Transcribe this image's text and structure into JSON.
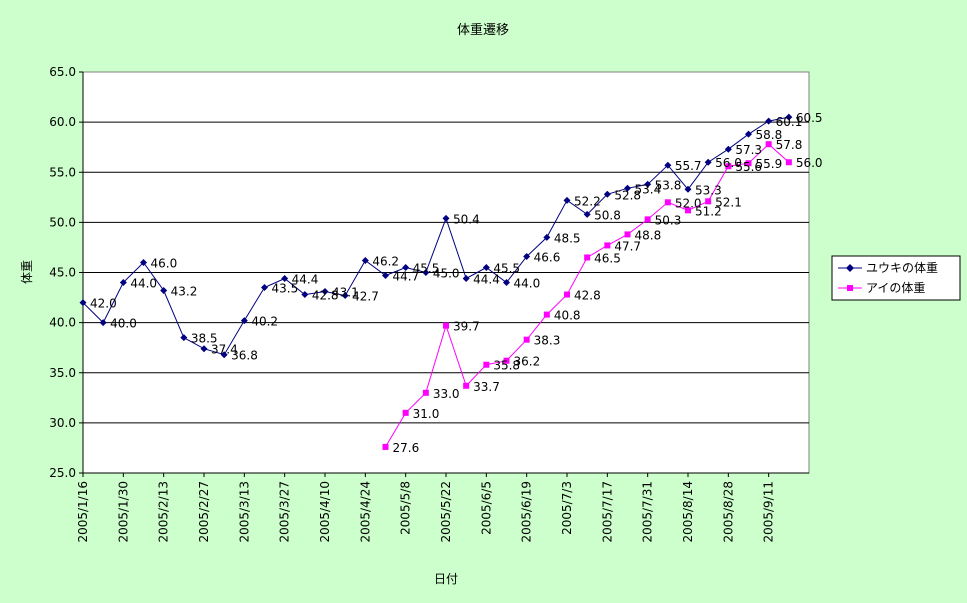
{
  "chart_data": {
    "type": "line",
    "title": "体重遷移",
    "xlabel": "日付",
    "ylabel": "体重",
    "ylim": [
      25.0,
      65.0
    ],
    "yticks": [
      "25.0",
      "30.0",
      "35.0",
      "40.0",
      "45.0",
      "50.0",
      "55.0",
      "60.0",
      "65.0"
    ],
    "xlim": [
      "2005/1/16",
      "2005/9/25"
    ],
    "xticks": [
      "2005/1/16",
      "2005/1/30",
      "2005/2/13",
      "2005/2/27",
      "2005/3/13",
      "2005/3/27",
      "2005/4/10",
      "2005/4/24",
      "2005/5/8",
      "2005/5/22",
      "2005/6/5",
      "2005/6/19",
      "2005/7/3",
      "2005/7/17",
      "2005/7/31",
      "2005/8/14",
      "2005/8/28",
      "2005/9/11"
    ],
    "grid": true,
    "legend_position": "right",
    "series": [
      {
        "name": "ユウキの体重",
        "color": "#000080",
        "marker": "diamond",
        "x": [
          "2005/1/16",
          "2005/1/23",
          "2005/1/30",
          "2005/2/6",
          "2005/2/13",
          "2005/2/20",
          "2005/2/27",
          "2005/3/6",
          "2005/3/13",
          "2005/3/20",
          "2005/3/27",
          "2005/4/3",
          "2005/4/10",
          "2005/4/17",
          "2005/4/24",
          "2005/5/1",
          "2005/5/8",
          "2005/5/15",
          "2005/5/22",
          "2005/5/29",
          "2005/6/5",
          "2005/6/12",
          "2005/6/19",
          "2005/6/26",
          "2005/7/3",
          "2005/7/10",
          "2005/7/17",
          "2005/7/24",
          "2005/7/31",
          "2005/8/7",
          "2005/8/14",
          "2005/8/21",
          "2005/8/28",
          "2005/9/4",
          "2005/9/11",
          "2005/9/18"
        ],
        "values": [
          42.0,
          40.0,
          44.0,
          46.0,
          43.2,
          38.5,
          37.4,
          36.8,
          40.2,
          43.5,
          44.4,
          42.8,
          43.1,
          42.7,
          46.2,
          44.7,
          45.5,
          45.0,
          50.4,
          44.4,
          45.5,
          44.0,
          46.6,
          48.5,
          52.2,
          50.8,
          52.8,
          53.4,
          53.8,
          55.7,
          53.3,
          56.0,
          57.3,
          58.8,
          60.1,
          60.5
        ]
      },
      {
        "name": "アイの体重",
        "color": "#ff00ff",
        "marker": "square",
        "x": [
          "2005/5/1",
          "2005/5/8",
          "2005/5/15",
          "2005/5/22",
          "2005/5/29",
          "2005/6/5",
          "2005/6/12",
          "2005/6/19",
          "2005/6/26",
          "2005/7/3",
          "2005/7/10",
          "2005/7/17",
          "2005/7/24",
          "2005/7/31",
          "2005/8/7",
          "2005/8/14",
          "2005/8/21",
          "2005/8/28",
          "2005/9/4",
          "2005/9/11",
          "2005/9/18"
        ],
        "values": [
          27.6,
          31.0,
          33.0,
          39.7,
          33.7,
          35.8,
          36.2,
          38.3,
          40.8,
          42.8,
          46.5,
          47.7,
          48.8,
          50.3,
          52.0,
          51.2,
          52.1,
          55.6,
          55.9,
          57.8,
          56.0
        ]
      }
    ]
  }
}
